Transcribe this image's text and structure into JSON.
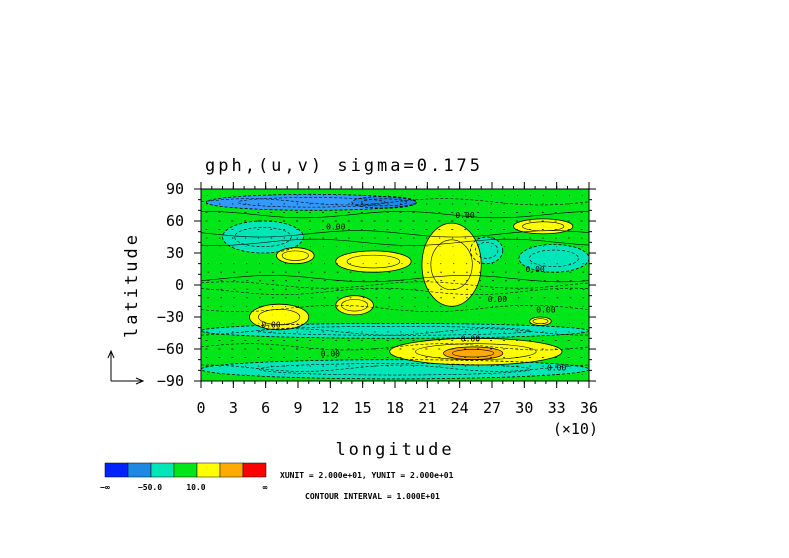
{
  "chart_data": {
    "type": "heatmap",
    "title": "gph,(u,v) sigma=0.175",
    "xlabel": "longitude",
    "ylabel": "latitude",
    "x_scale_label": "(×10)",
    "xlim": [
      0,
      360
    ],
    "ylim": [
      -90,
      90
    ],
    "x_ticks": [
      "0",
      "3",
      "6",
      "9",
      "12",
      "15",
      "18",
      "21",
      "24",
      "27",
      "30",
      "33",
      "36"
    ],
    "y_ticks": [
      "90",
      "60",
      "30",
      "0",
      "−30",
      "−60",
      "−90"
    ],
    "contour_labels": [
      {
        "text": "0.00",
        "lon": 245,
        "lat": 63
      },
      {
        "text": "0.00",
        "lon": 125,
        "lat": 52
      },
      {
        "text": "0.00",
        "lon": 310,
        "lat": 12
      },
      {
        "text": "0.00",
        "lon": 275,
        "lat": -16
      },
      {
        "text": "0.00",
        "lon": 320,
        "lat": -26
      },
      {
        "text": "0.00",
        "lon": 65,
        "lat": -40
      },
      {
        "text": "0.00",
        "lon": 250,
        "lat": -53
      },
      {
        "text": "0.00",
        "lon": 120,
        "lat": -67
      },
      {
        "text": "0.00",
        "lon": 330,
        "lat": -80
      }
    ],
    "regions": [
      {
        "level": "lt-30",
        "color": "#3399ff",
        "lon": [
          5,
          200
        ],
        "lat": [
          70,
          85
        ]
      },
      {
        "level": "lt-30",
        "color": "#1e88e5",
        "lon": [
          140,
          200
        ],
        "lat": [
          72,
          83
        ]
      },
      {
        "level": "mid-neg",
        "color": "#00e6b8",
        "lon": [
          20,
          95
        ],
        "lat": [
          30,
          60
        ]
      },
      {
        "level": "mid-neg",
        "color": "#00e6b8",
        "lon": [
          250,
          280
        ],
        "lat": [
          20,
          45
        ]
      },
      {
        "level": "mid-neg",
        "color": "#00e6b8",
        "lon": [
          295,
          360
        ],
        "lat": [
          12,
          38
        ]
      },
      {
        "level": "mid-neg",
        "color": "#00e6b8",
        "lon": [
          0,
          360
        ],
        "lat": [
          -50,
          -36
        ]
      },
      {
        "level": "mid-neg",
        "color": "#00e6b8",
        "lon": [
          0,
          360
        ],
        "lat": [
          -88,
          -70
        ]
      },
      {
        "level": "pos",
        "color": "#ffff00",
        "lon": [
          70,
          105
        ],
        "lat": [
          20,
          35
        ]
      },
      {
        "level": "pos",
        "color": "#ffff00",
        "lon": [
          125,
          195
        ],
        "lat": [
          12,
          32
        ]
      },
      {
        "level": "pos",
        "color": "#ffff00",
        "lon": [
          205,
          260
        ],
        "lat": [
          -20,
          58
        ]
      },
      {
        "level": "pos",
        "color": "#ffff00",
        "lon": [
          290,
          345
        ],
        "lat": [
          48,
          62
        ]
      },
      {
        "level": "pos",
        "color": "#ffff00",
        "lon": [
          125,
          160
        ],
        "lat": [
          -28,
          -10
        ]
      },
      {
        "level": "pos",
        "color": "#ffff00",
        "lon": [
          45,
          100
        ],
        "lat": [
          -42,
          -18
        ]
      },
      {
        "level": "pos",
        "color": "#ffff00",
        "lon": [
          305,
          325
        ],
        "lat": [
          -38,
          -30
        ]
      },
      {
        "level": "pos",
        "color": "#ffff00",
        "lon": [
          175,
          335
        ],
        "lat": [
          -75,
          -50
        ]
      },
      {
        "level": "high",
        "color": "#ffaa00",
        "lon": [
          225,
          280
        ],
        "lat": [
          -70,
          -58
        ]
      }
    ]
  },
  "colorbar": {
    "colors": [
      "#0022ff",
      "#1e88e5",
      "#00e6b8",
      "#00e619",
      "#ffff00",
      "#ffaa00",
      "#ff0000"
    ],
    "labels": [
      "−∞",
      "−50.0",
      "10.0",
      "∞"
    ]
  },
  "units_text": "XUNIT = 2.000e+01, YUNIT = 2.000e+01",
  "contour_interval_text": "CONTOUR INTERVAL = 1.000E+01"
}
